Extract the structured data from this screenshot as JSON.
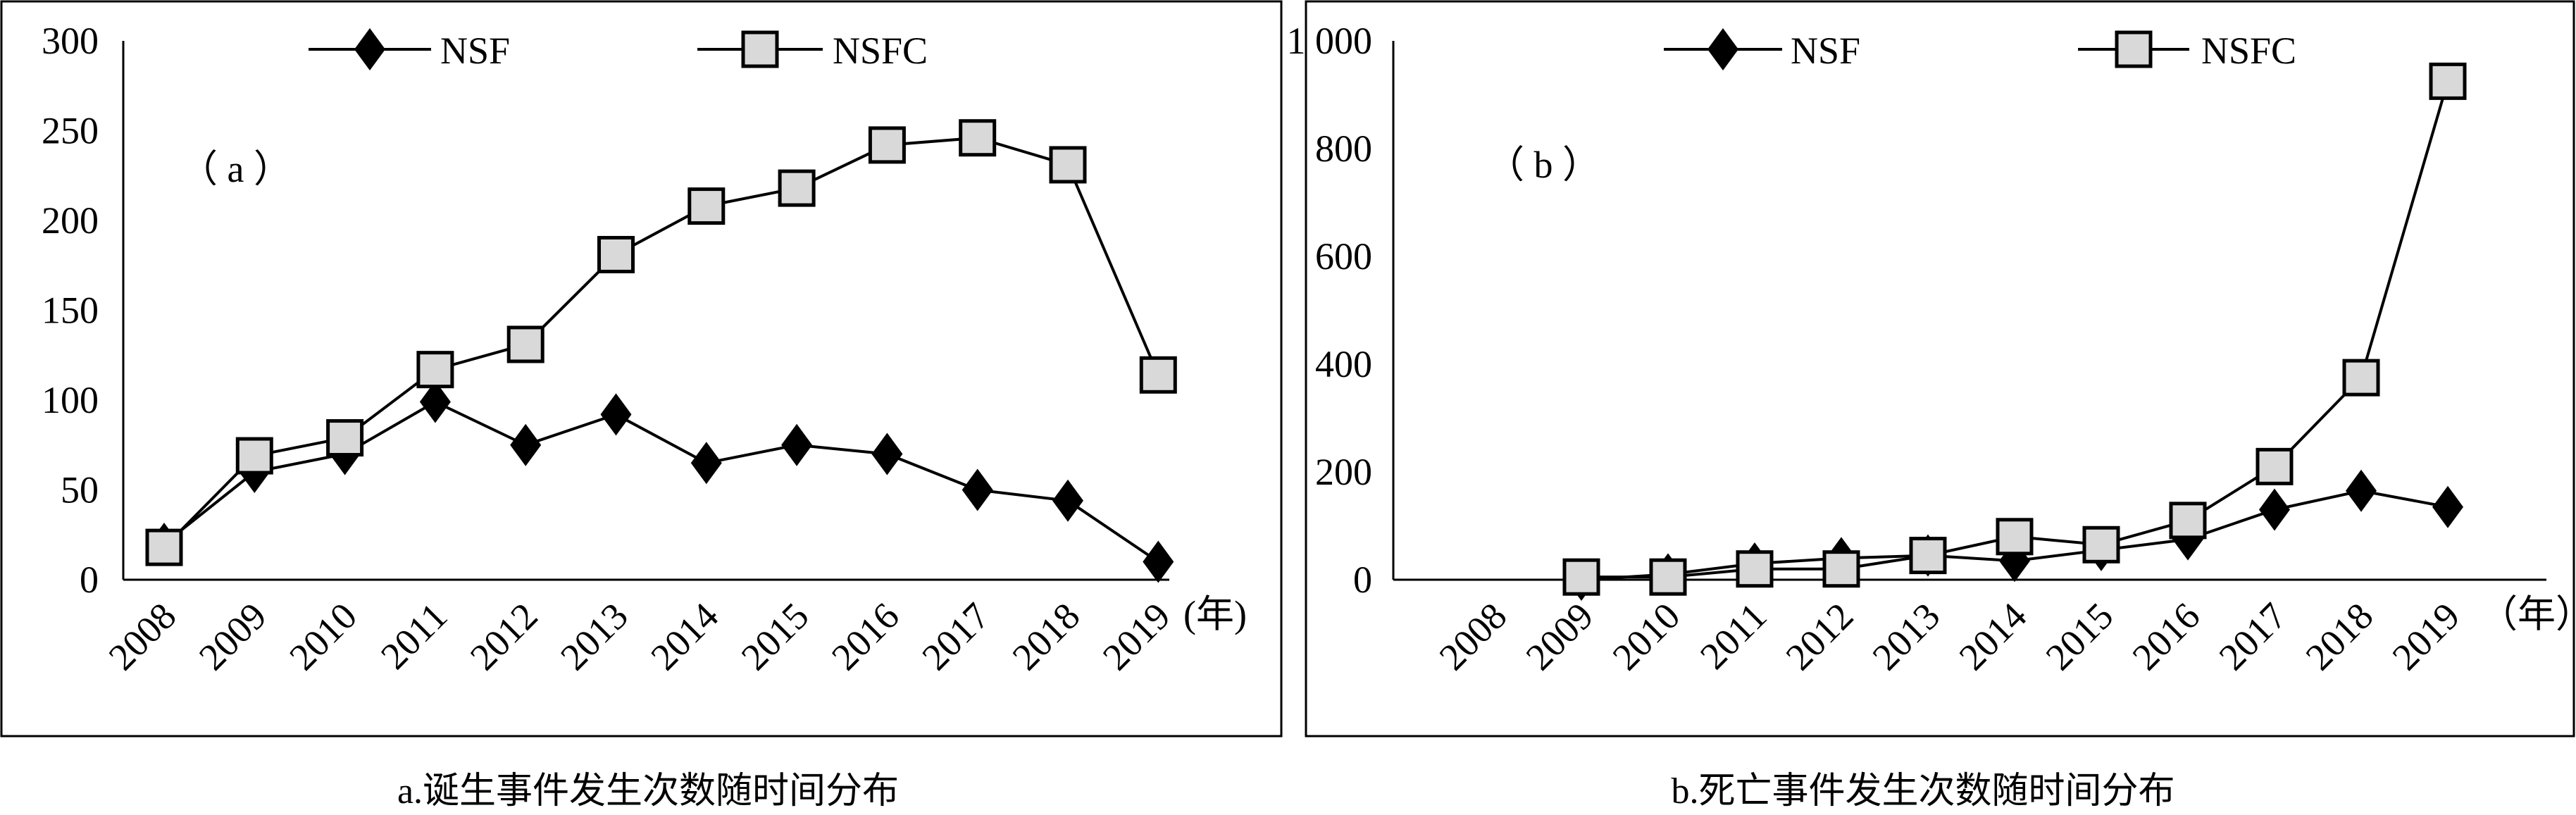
{
  "chart_data": [
    {
      "type": "line",
      "panel_label": "（ a ）",
      "caption": "a.诞生事件发生次数随时间分布",
      "x_unit": "(年)",
      "categories": [
        "2008",
        "2009",
        "2010",
        "2011",
        "2012",
        "2013",
        "2014",
        "2015",
        "2016",
        "2017",
        "2018",
        "2019"
      ],
      "ylim": [
        0,
        300
      ],
      "yticks": [
        "0",
        "50",
        "100",
        "150",
        "200",
        "250",
        "300"
      ],
      "ytick_values": [
        0,
        50,
        100,
        150,
        200,
        250,
        300
      ],
      "legend_position": "top",
      "series": [
        {
          "name": "NSF",
          "marker": "diamond",
          "values": [
            20,
            60,
            70,
            99,
            75,
            92,
            65,
            75,
            70,
            50,
            44,
            10
          ]
        },
        {
          "name": "NSFC",
          "marker": "square",
          "values": [
            18,
            69,
            79,
            117,
            131,
            181,
            208,
            218,
            242,
            246,
            231,
            114
          ]
        }
      ]
    },
    {
      "type": "line",
      "panel_label": "（ b ）",
      "caption": "b.死亡事件发生次数随时间分布",
      "x_unit": "（年）",
      "categories": [
        "2008",
        "2009",
        "2010",
        "2011",
        "2012",
        "2013",
        "2014",
        "2015",
        "2016",
        "2017",
        "2018",
        "2019"
      ],
      "ylim": [
        0,
        1000
      ],
      "yticks": [
        "0",
        "200",
        "400",
        "600",
        "800",
        "1 000"
      ],
      "ytick_values": [
        0,
        200,
        400,
        600,
        800,
        1000
      ],
      "legend_position": "top",
      "series": [
        {
          "name": "NSF",
          "marker": "diamond",
          "values": [
            null,
            0,
            10,
            30,
            40,
            45,
            35,
            55,
            75,
            130,
            165,
            135
          ]
        },
        {
          "name": "NSFC",
          "marker": "square",
          "values": [
            null,
            5,
            5,
            20,
            20,
            45,
            80,
            65,
            110,
            210,
            375,
            925
          ]
        }
      ]
    }
  ],
  "colors": {
    "line": "#000000",
    "square_fill": "#d9d9d9",
    "diamond_fill": "#000000"
  }
}
